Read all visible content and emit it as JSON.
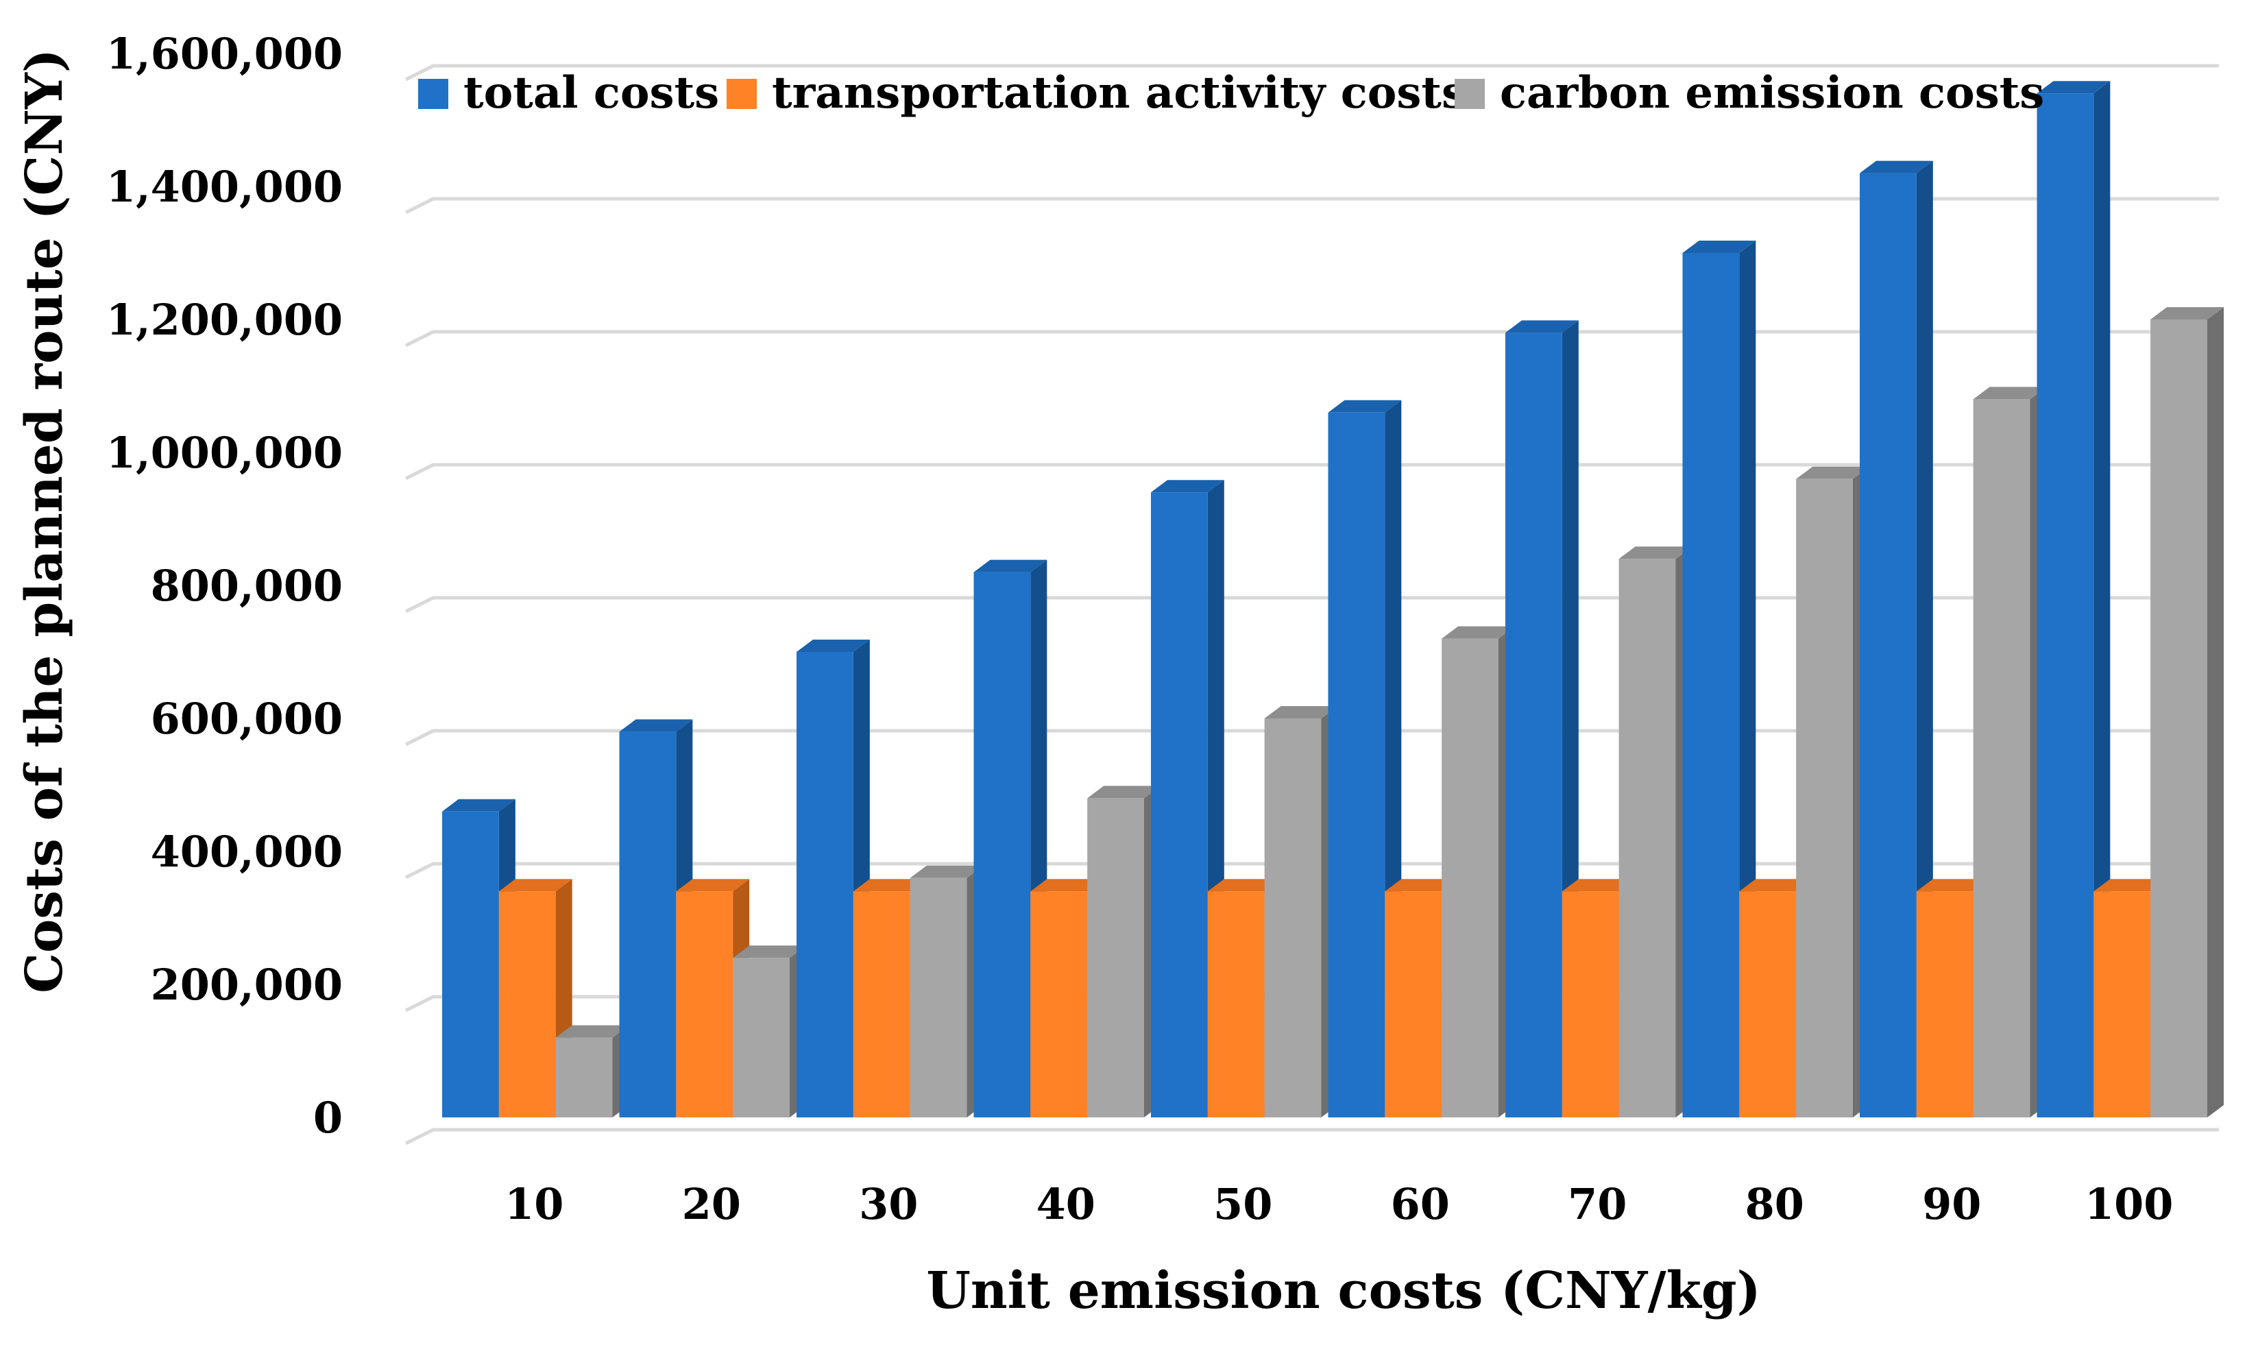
{
  "chart_data": {
    "type": "bar",
    "style": "3d-clustered-column",
    "title": "",
    "xlabel": "Unit emission costs (CNY/kg)",
    "ylabel": "Costs of the planned route (CNY)",
    "ylim": [
      0,
      1600000
    ],
    "ytick_step": 200000,
    "ytick_labels": [
      "0",
      "200,000",
      "400,000",
      "600,000",
      "800,000",
      "1,000,000",
      "1,200,000",
      "1,400,000",
      "1,600,000"
    ],
    "categories": [
      "10",
      "20",
      "30",
      "40",
      "50",
      "60",
      "70",
      "80",
      "90",
      "100"
    ],
    "grid": true,
    "legend_position": "top",
    "series": [
      {
        "name": "total costs",
        "color": "#1f72c8",
        "side_color": "#134f8d",
        "top_color": "#1a62ad",
        "values": [
          460000,
          580000,
          700000,
          820000,
          940000,
          1060000,
          1180000,
          1300000,
          1420000,
          1540000
        ]
      },
      {
        "name": "transportation activity costs",
        "color": "#ff8226",
        "side_color": "#b65a16",
        "top_color": "#e2701e",
        "values": [
          340000,
          340000,
          340000,
          340000,
          340000,
          340000,
          340000,
          340000,
          340000,
          340000
        ]
      },
      {
        "name": "carbon emission costs",
        "color": "#a6a6a6",
        "side_color": "#6f6f6f",
        "top_color": "#8e8e8e",
        "values": [
          120000,
          240000,
          360000,
          480000,
          600000,
          720000,
          840000,
          960000,
          1080000,
          1200000
        ]
      }
    ]
  }
}
